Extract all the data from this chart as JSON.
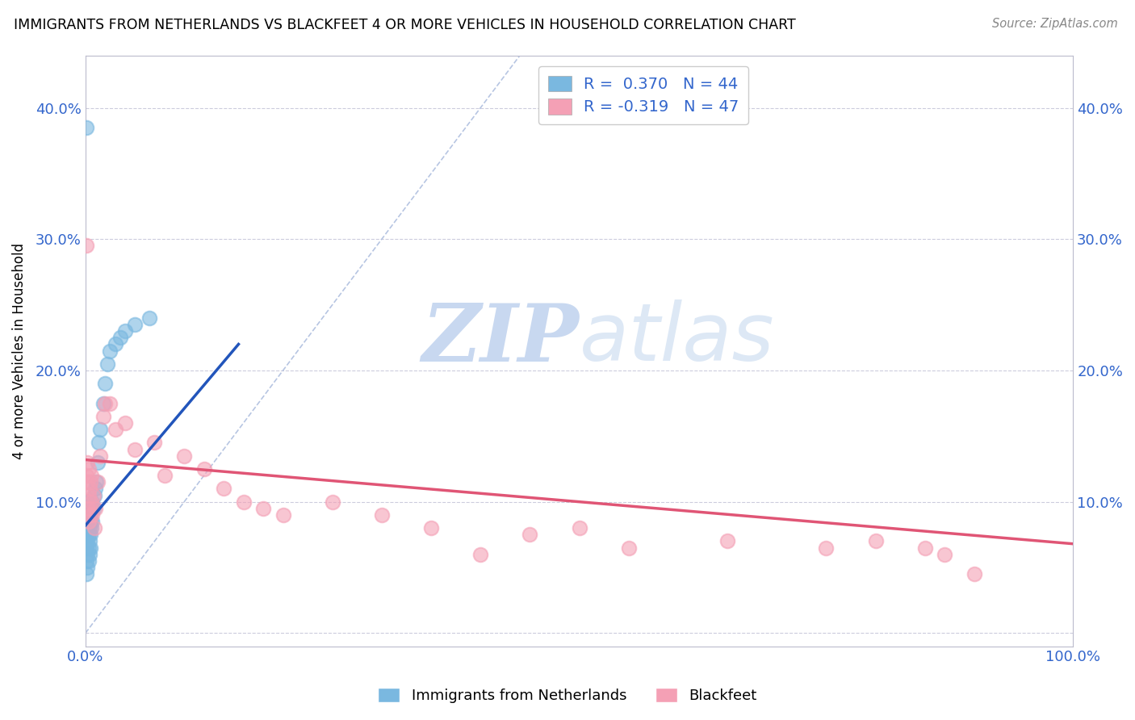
{
  "title": "IMMIGRANTS FROM NETHERLANDS VS BLACKFEET 4 OR MORE VEHICLES IN HOUSEHOLD CORRELATION CHART",
  "source": "Source: ZipAtlas.com",
  "ylabel": "4 or more Vehicles in Household",
  "ytick_vals": [
    0.0,
    0.1,
    0.2,
    0.3,
    0.4
  ],
  "xlim": [
    0.0,
    1.0
  ],
  "ylim": [
    -0.01,
    0.44
  ],
  "legend1_label": "Immigrants from Netherlands",
  "legend2_label": "Blackfeet",
  "R1": 0.37,
  "N1": 44,
  "R2": -0.319,
  "N2": 47,
  "blue_color": "#7ab8e0",
  "pink_color": "#f4a0b5",
  "blue_line_color": "#2255bb",
  "pink_line_color": "#e05575",
  "text_color": "#3366cc",
  "watermark_zip": "ZIP",
  "watermark_atlas": "atlas",
  "watermark_color": "#c8d8f0",
  "blue_scatter_x": [
    0.001,
    0.001,
    0.001,
    0.001,
    0.001,
    0.002,
    0.002,
    0.002,
    0.002,
    0.002,
    0.002,
    0.003,
    0.003,
    0.003,
    0.003,
    0.003,
    0.004,
    0.004,
    0.004,
    0.004,
    0.005,
    0.005,
    0.005,
    0.006,
    0.006,
    0.007,
    0.007,
    0.008,
    0.009,
    0.01,
    0.011,
    0.012,
    0.013,
    0.015,
    0.018,
    0.02,
    0.022,
    0.025,
    0.03,
    0.035,
    0.04,
    0.05,
    0.065,
    0.001
  ],
  "blue_scatter_y": [
    0.045,
    0.055,
    0.065,
    0.075,
    0.085,
    0.05,
    0.06,
    0.07,
    0.08,
    0.09,
    0.1,
    0.055,
    0.065,
    0.075,
    0.085,
    0.095,
    0.06,
    0.07,
    0.08,
    0.09,
    0.065,
    0.075,
    0.085,
    0.08,
    0.095,
    0.085,
    0.1,
    0.095,
    0.105,
    0.11,
    0.115,
    0.13,
    0.145,
    0.155,
    0.175,
    0.19,
    0.205,
    0.215,
    0.22,
    0.225,
    0.23,
    0.235,
    0.24,
    0.385
  ],
  "pink_scatter_x": [
    0.001,
    0.002,
    0.002,
    0.002,
    0.003,
    0.003,
    0.003,
    0.004,
    0.004,
    0.005,
    0.005,
    0.006,
    0.006,
    0.007,
    0.008,
    0.009,
    0.01,
    0.012,
    0.015,
    0.018,
    0.02,
    0.025,
    0.03,
    0.04,
    0.05,
    0.07,
    0.08,
    0.1,
    0.12,
    0.14,
    0.16,
    0.18,
    0.2,
    0.25,
    0.3,
    0.35,
    0.4,
    0.45,
    0.5,
    0.55,
    0.65,
    0.75,
    0.8,
    0.85,
    0.87,
    0.9,
    0.001
  ],
  "pink_scatter_y": [
    0.12,
    0.095,
    0.115,
    0.13,
    0.085,
    0.105,
    0.125,
    0.095,
    0.11,
    0.09,
    0.115,
    0.1,
    0.12,
    0.09,
    0.105,
    0.08,
    0.095,
    0.115,
    0.135,
    0.165,
    0.175,
    0.175,
    0.155,
    0.16,
    0.14,
    0.145,
    0.12,
    0.135,
    0.125,
    0.11,
    0.1,
    0.095,
    0.09,
    0.1,
    0.09,
    0.08,
    0.06,
    0.075,
    0.08,
    0.065,
    0.07,
    0.065,
    0.07,
    0.065,
    0.06,
    0.045,
    0.295
  ],
  "blue_line_x": [
    0.0,
    0.155
  ],
  "blue_line_y": [
    0.082,
    0.22
  ],
  "pink_line_x": [
    0.0,
    1.0
  ],
  "pink_line_y": [
    0.132,
    0.068
  ],
  "diag_line_x": [
    0.0,
    0.44
  ],
  "diag_line_y": [
    0.0,
    0.44
  ]
}
